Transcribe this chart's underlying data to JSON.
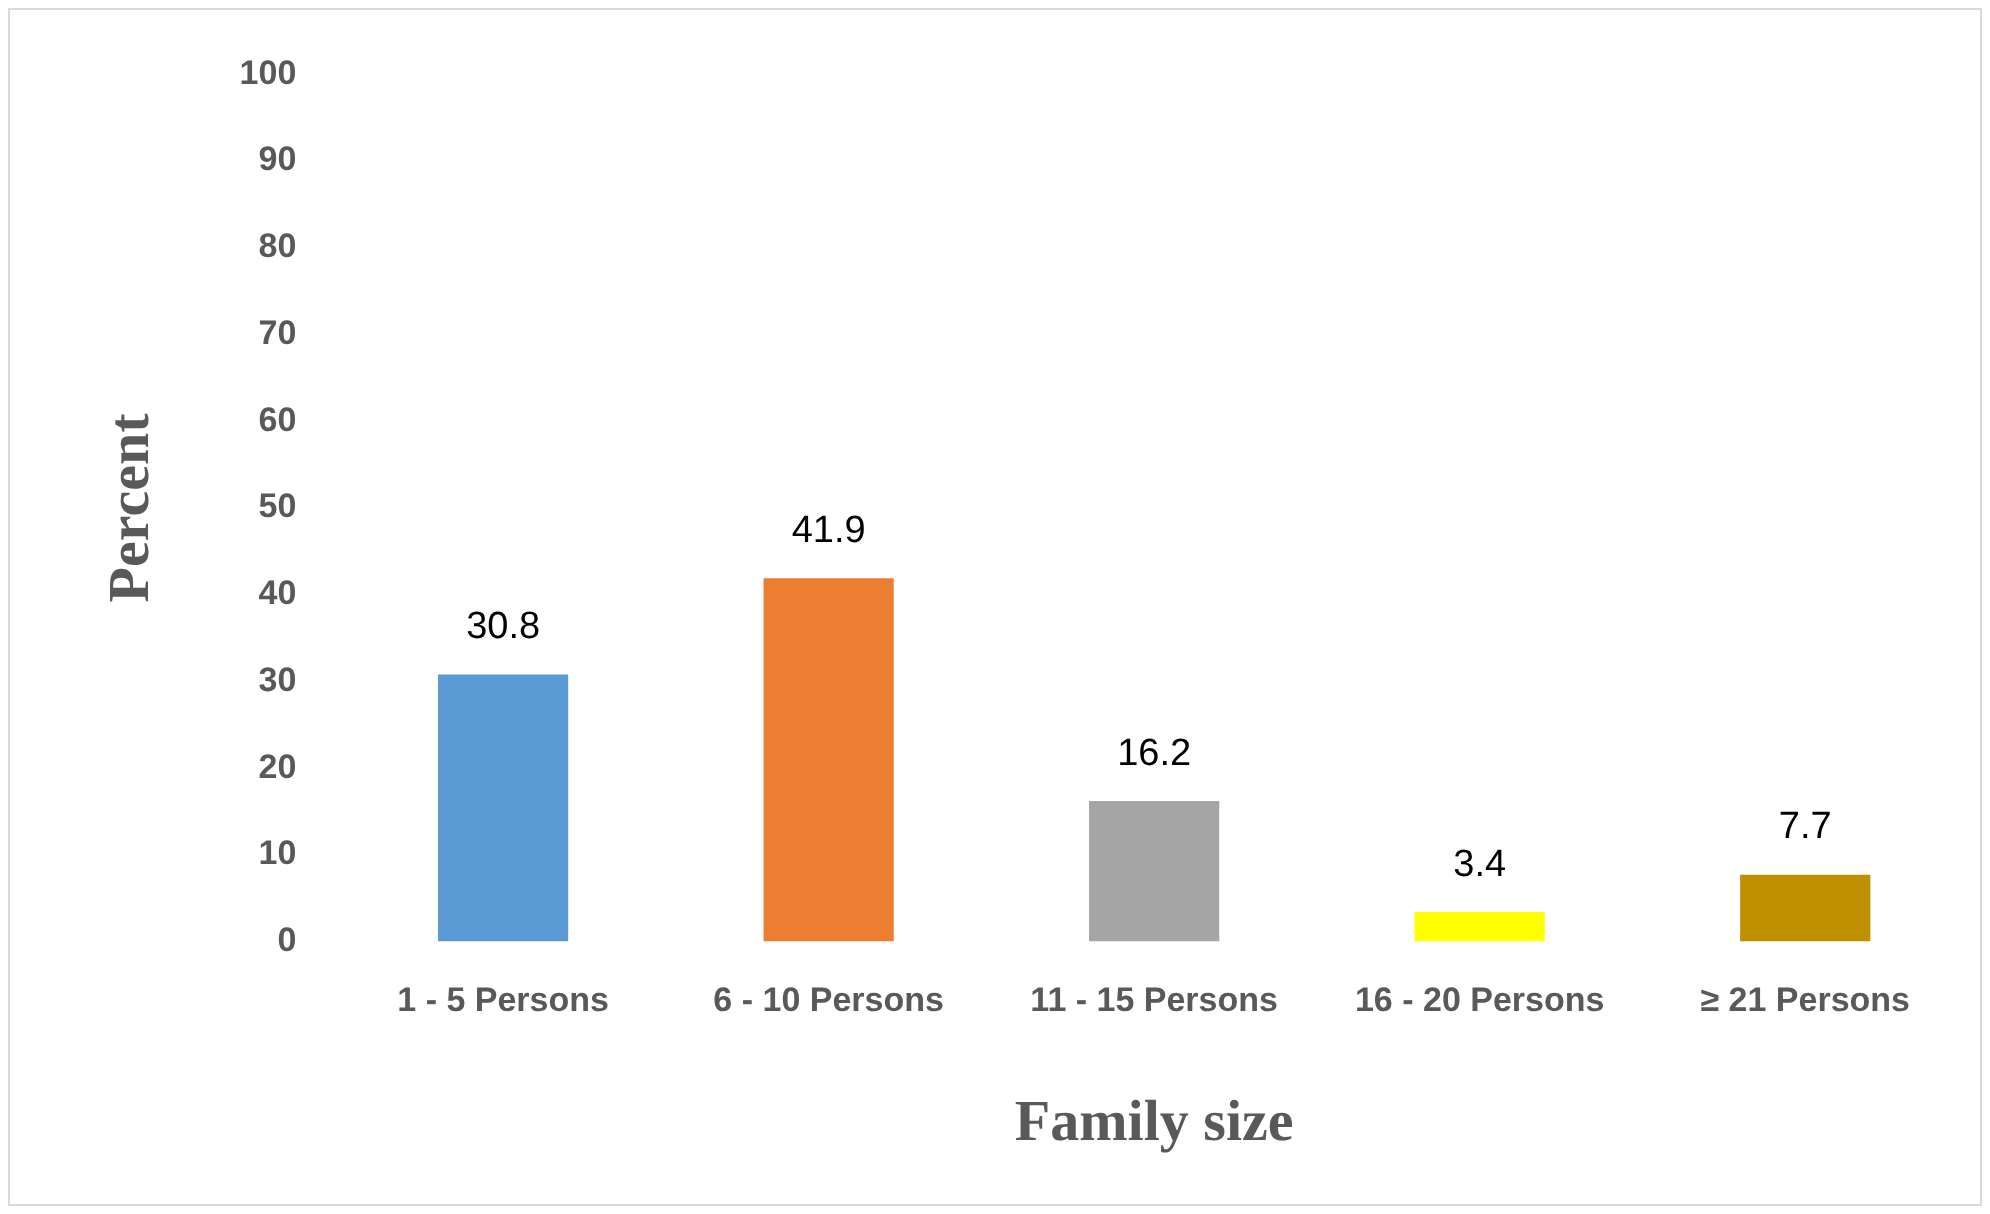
{
  "chart_data": {
    "type": "bar",
    "xlabel": "Family size",
    "ylabel": "Percent",
    "categories": [
      "1 - 5 Persons",
      "6 - 10 Persons",
      "11 - 15 Persons",
      "16 - 20 Persons",
      "≥ 21 Persons"
    ],
    "values": [
      30.8,
      41.9,
      16.2,
      3.4,
      7.7
    ],
    "colors": [
      "#5b9bd5",
      "#ed7d31",
      "#a5a5a5",
      "#ffff00",
      "#bf9000"
    ],
    "ylim": [
      0,
      100
    ],
    "yticks": [
      0,
      10,
      20,
      30,
      40,
      50,
      60,
      70,
      80,
      90,
      100
    ],
    "grid": false,
    "legend": false,
    "data_labels": true
  }
}
